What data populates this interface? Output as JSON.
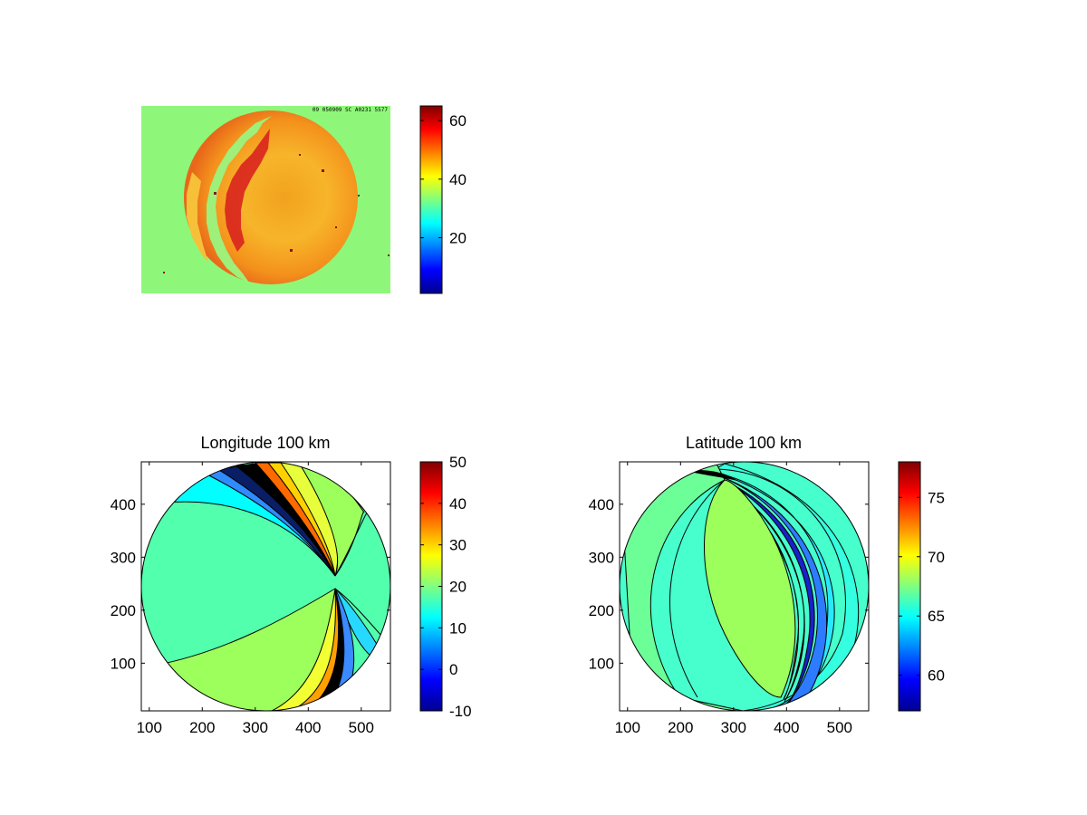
{
  "chart_data": [
    {
      "type": "heatmap",
      "title": "",
      "description_tag": "image",
      "colorbar": {
        "range": [
          1,
          65
        ],
        "ticks": [
          20,
          40,
          60
        ],
        "colormap": "jet"
      },
      "overlay_text": "09 050909 SC A0231 5577"
    },
    {
      "type": "heatmap",
      "title": "Longitude 100 km",
      "xlim": [
        85,
        555
      ],
      "ylim": [
        10,
        480
      ],
      "xticks": [
        100,
        200,
        300,
        400,
        500
      ],
      "yticks": [
        100,
        200,
        300,
        400
      ],
      "colorbar": {
        "range": [
          -10,
          50
        ],
        "ticks": [
          -10,
          0,
          10,
          20,
          30,
          40,
          50
        ],
        "colormap": "jet"
      },
      "disk": {
        "cx": 320,
        "cy": 245,
        "r": 235
      }
    },
    {
      "type": "heatmap",
      "title": "Latitude 100 km",
      "xlim": [
        85,
        555
      ],
      "ylim": [
        10,
        480
      ],
      "xticks": [
        100,
        200,
        300,
        400,
        500
      ],
      "yticks": [
        100,
        200,
        300,
        400
      ],
      "colorbar": {
        "range": [
          57,
          78
        ],
        "ticks": [
          60,
          65,
          70,
          75
        ],
        "colormap": "jet"
      },
      "disk": {
        "cx": 320,
        "cy": 245,
        "r": 235
      }
    }
  ]
}
